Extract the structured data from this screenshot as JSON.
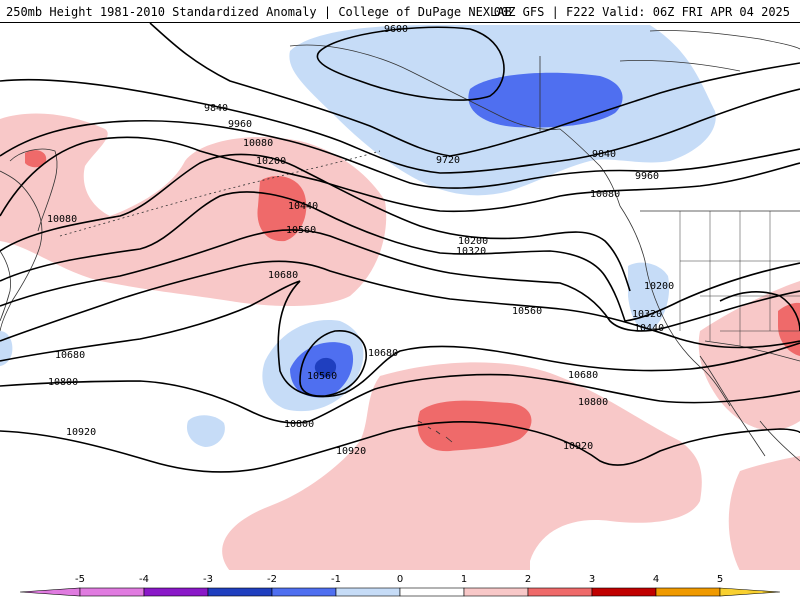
{
  "header": {
    "title_left": "250mb Height 1981-2010 Standardized Anomaly | College of DuPage NEXLAB",
    "title_right": "00Z GFS | F222 Valid: 06Z FRI APR 04 2025"
  },
  "colors": {
    "anom_neg5": "#e07be0",
    "anom_neg4": "#8a18c8",
    "anom_neg3": "#1f3fbf",
    "anom_neg2": "#4f6ff0",
    "anom_neg1": "#c6dcf7",
    "anom_0": "#ffffff",
    "anom_pos1": "#f8c8c8",
    "anom_pos2": "#ef6a6a",
    "anom_pos3": "#c00000",
    "anom_pos4": "#f09a00",
    "anom_pos5": "#f8d030",
    "contour": "#000000",
    "coast": "#333333"
  },
  "contour_labels": [
    {
      "id": "cl-9600",
      "text": "9600"
    },
    {
      "id": "cl-9720",
      "text": "9720"
    },
    {
      "id": "cl-9840-w",
      "text": "9840"
    },
    {
      "id": "cl-9840-e",
      "text": "9840"
    },
    {
      "id": "cl-9960-w",
      "text": "9960"
    },
    {
      "id": "cl-9960-e",
      "text": "9960"
    },
    {
      "id": "cl-10080-n",
      "text": "10080"
    },
    {
      "id": "cl-10080-w",
      "text": "10080"
    },
    {
      "id": "cl-10080-e",
      "text": "10080"
    },
    {
      "id": "cl-10200-n",
      "text": "10200"
    },
    {
      "id": "cl-10200-c",
      "text": "10200"
    },
    {
      "id": "cl-10200-e",
      "text": "10200"
    },
    {
      "id": "cl-10320-c",
      "text": "10320"
    },
    {
      "id": "cl-10320-e",
      "text": "10320"
    },
    {
      "id": "cl-10440-n",
      "text": "10440"
    },
    {
      "id": "cl-10440-e",
      "text": "10440"
    },
    {
      "id": "cl-10560-n",
      "text": "10560"
    },
    {
      "id": "cl-10560-c",
      "text": "10560"
    },
    {
      "id": "cl-10560-low",
      "text": "10560"
    },
    {
      "id": "cl-10680-n",
      "text": "10680"
    },
    {
      "id": "cl-10680-w",
      "text": "10680"
    },
    {
      "id": "cl-10680-c",
      "text": "10680"
    },
    {
      "id": "cl-10680-e",
      "text": "10680"
    },
    {
      "id": "cl-10800-w",
      "text": "10800"
    },
    {
      "id": "cl-10800-c",
      "text": "10800"
    },
    {
      "id": "cl-10800-e",
      "text": "10800"
    },
    {
      "id": "cl-10920-w",
      "text": "10920"
    },
    {
      "id": "cl-10920-c",
      "text": "10920"
    },
    {
      "id": "cl-10920-e",
      "text": "10920"
    }
  ],
  "colorbar": {
    "ticks": [
      "-5",
      "-4",
      "-3",
      "-2",
      "-1",
      "0",
      "1",
      "2",
      "3",
      "4",
      "5"
    ]
  }
}
